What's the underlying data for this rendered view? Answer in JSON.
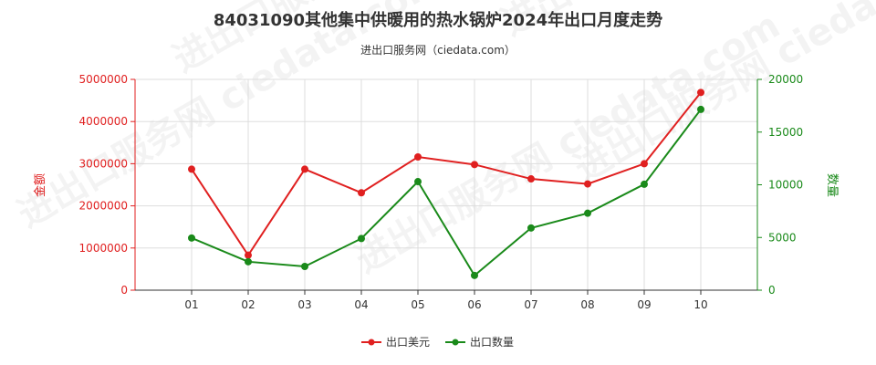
{
  "chart_data": {
    "type": "line",
    "title": "84031090其他集中供暖用的热水锅炉2024年出口月度走势",
    "subtitle": "进出口服务网（ciedata.com）",
    "watermark": "进出口服务网 ciedata.com",
    "categories": [
      "01",
      "02",
      "03",
      "04",
      "05",
      "06",
      "07",
      "08",
      "09",
      "10"
    ],
    "y_left": {
      "label": "金额",
      "range": [
        0,
        5000000
      ],
      "ticks": [
        "0",
        "1000000",
        "2000000",
        "3000000",
        "4000000",
        "5000000"
      ],
      "color": "#e02020"
    },
    "y_right": {
      "label": "数量",
      "range": [
        0,
        20000
      ],
      "ticks": [
        "0",
        "5000",
        "10000",
        "15000",
        "20000"
      ],
      "color": "#1a8a1a"
    },
    "grid": true,
    "legend_position": "bottom-center",
    "series": [
      {
        "name": "出口美元",
        "axis": "left",
        "color": "#e02020",
        "values": [
          2870000,
          830000,
          2870000,
          2310000,
          3160000,
          2980000,
          2640000,
          2520000,
          3000000,
          4690000
        ]
      },
      {
        "name": "出口数量",
        "axis": "right",
        "color": "#1a8a1a",
        "values": [
          4950,
          2700,
          2250,
          4900,
          10300,
          1400,
          5900,
          7300,
          10050,
          17150
        ]
      }
    ]
  }
}
